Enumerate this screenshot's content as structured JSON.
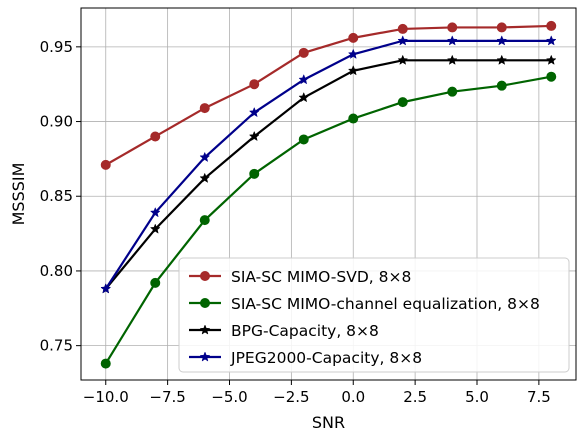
{
  "chart_data": {
    "type": "line",
    "xlabel": "SNR",
    "ylabel": "MSSSIM",
    "xlim": [
      -11,
      9
    ],
    "ylim": [
      0.727,
      0.976
    ],
    "xticks": [
      -10.0,
      -7.5,
      -5.0,
      -2.5,
      0.0,
      2.5,
      5.0,
      7.5
    ],
    "xtick_labels": [
      "−10.0",
      "−7.5",
      "−5.0",
      "−2.5",
      "0.0",
      "2.5",
      "5.0",
      "7.5"
    ],
    "yticks": [
      0.75,
      0.8,
      0.85,
      0.9,
      0.95
    ],
    "ytick_labels": [
      "0.75",
      "0.80",
      "0.85",
      "0.90",
      "0.95"
    ],
    "grid": true,
    "legend_position": "lower-right",
    "x": [
      -10,
      -8,
      -6,
      -4,
      -2,
      0,
      2,
      4,
      6,
      8
    ],
    "series": [
      {
        "name": "SIA-SC MIMO-SVD, 8×8",
        "color": "#A52A2A",
        "marker": "circle",
        "values": [
          0.871,
          0.89,
          0.909,
          0.925,
          0.946,
          0.956,
          0.962,
          0.963,
          0.963,
          0.964
        ]
      },
      {
        "name": "SIA-SC MIMO-channel equalization, 8×8",
        "color": "#006400",
        "marker": "circle",
        "values": [
          0.738,
          0.792,
          0.834,
          0.865,
          0.888,
          0.902,
          0.913,
          0.92,
          0.924,
          0.93
        ]
      },
      {
        "name": "BPG-Capacity, 8×8",
        "color": "#000000",
        "marker": "star",
        "values": [
          0.788,
          0.828,
          0.862,
          0.89,
          0.916,
          0.934,
          0.941,
          0.941,
          0.941,
          0.941
        ]
      },
      {
        "name": "JPEG2000-Capacity, 8×8",
        "color": "#00008B",
        "marker": "star",
        "values": [
          0.788,
          0.839,
          0.876,
          0.906,
          0.928,
          0.945,
          0.954,
          0.954,
          0.954,
          0.954
        ]
      }
    ]
  }
}
